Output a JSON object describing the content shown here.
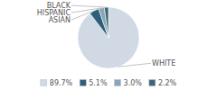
{
  "chart_data": {
    "type": "pie",
    "categories": [
      "WHITE",
      "ASIAN",
      "HISPANIC",
      "BLACK"
    ],
    "values": [
      89.7,
      5.1,
      3.0,
      2.2
    ],
    "value_labels": [
      "89.7%",
      "5.1%",
      "3.0%",
      "2.2%"
    ],
    "colors": [
      "#d0d9e4",
      "#2e5f7a",
      "#8aa4b8",
      "#3d6678"
    ],
    "legend": "bottom"
  }
}
